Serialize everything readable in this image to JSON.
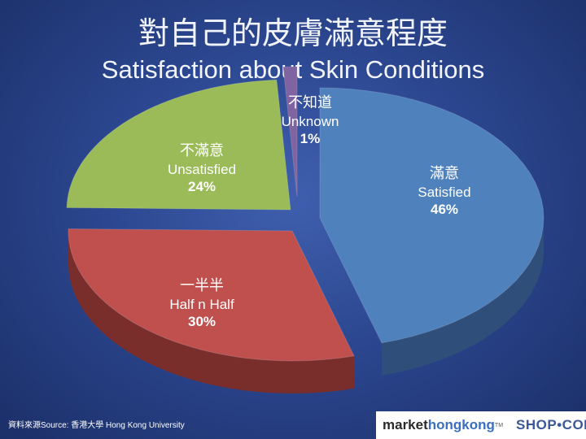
{
  "title_zh": "對自己的皮膚滿意程度",
  "title_en": "Satisfaction about Skin Conditions",
  "chart_data": {
    "type": "pie",
    "title": "Satisfaction about Skin Conditions",
    "slices": [
      {
        "label_zh": "滿意",
        "label_en": "Satisfied",
        "value": 46,
        "pct_label": "46%",
        "color": "#4f81bd",
        "side": "#2f4f7a"
      },
      {
        "label_zh": "一半半",
        "label_en": "Half n Half",
        "value": 30,
        "pct_label": "30%",
        "color": "#c0504d",
        "side": "#7a2e2c"
      },
      {
        "label_zh": "不滿意",
        "label_en": "Unsatisfied",
        "value": 24,
        "pct_label": "24%",
        "color": "#9bbb59",
        "side": "#5f7a30"
      },
      {
        "label_zh": "不知道",
        "label_en": "Unknown",
        "value": 1,
        "pct_label": "1%",
        "color": "#8064a2",
        "side": "#4e3a66"
      }
    ],
    "legend": "none"
  },
  "source": "資料來源Source: 香港大學 Hong Kong University",
  "brand": {
    "part1": "market",
    "part2": "hongkong",
    "tm": "TM",
    "part3": "SHOP•COM"
  }
}
